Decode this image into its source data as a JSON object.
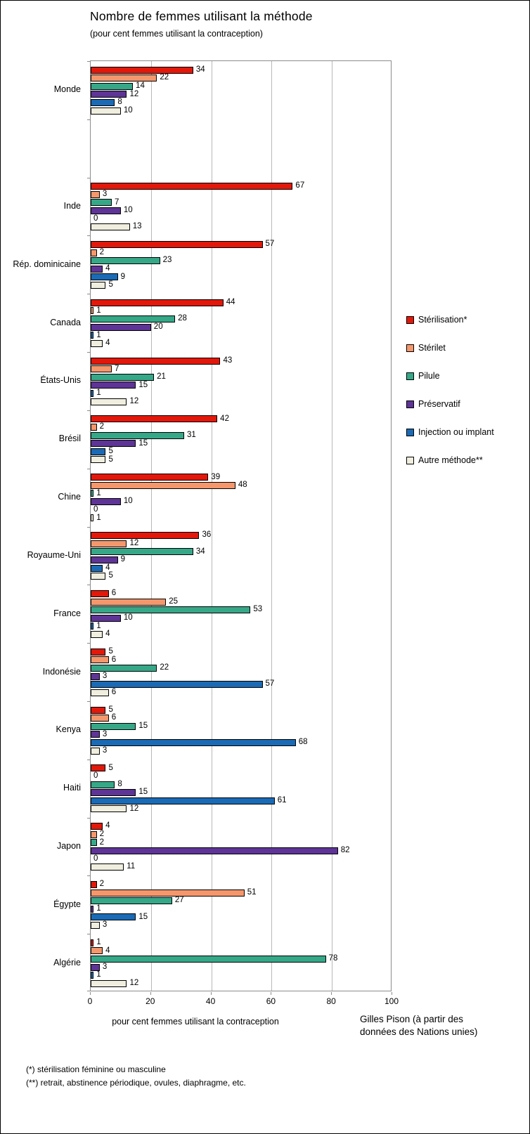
{
  "title": "Nombre de femmes utilisant la méthode",
  "subtitle": "(pour cent femmes utilisant la contraception)",
  "xlabel": "pour cent femmes utilisant la contraception",
  "credit": "Gilles Pison (à partir des données des Nations unies)",
  "footnotes": [
    "(*) stérilisation féminine ou masculine",
    "(**) retrait, abstinence périodique, ovules, diaphragme, etc."
  ],
  "chart_data": {
    "type": "bar",
    "orientation": "horizontal",
    "title": "Nombre de femmes utilisant la méthode",
    "subtitle": "(pour cent femmes utilisant la contraception)",
    "xlabel": "pour cent femmes utilisant la contraception",
    "xlim": [
      0,
      100
    ],
    "x_ticks": [
      0,
      20,
      40,
      60,
      80,
      100
    ],
    "grid": true,
    "legend_position": "right",
    "gap_after_first_category": true,
    "categories": [
      "Monde",
      "Inde",
      "Rép. dominicaine",
      "Canada",
      "États-Unis",
      "Brésil",
      "Chine",
      "Royaume-Uni",
      "France",
      "Indonésie",
      "Kenya",
      "Haiti",
      "Japon",
      "Égypte",
      "Algérie"
    ],
    "series": [
      {
        "name": "Stérilisation*",
        "color": "#e2180b",
        "values": [
          34,
          67,
          57,
          44,
          43,
          42,
          39,
          36,
          6,
          5,
          5,
          5,
          4,
          2,
          1
        ]
      },
      {
        "name": "Stérilet",
        "color": "#f5976c",
        "values": [
          22,
          3,
          2,
          1,
          7,
          2,
          48,
          12,
          25,
          6,
          6,
          0,
          2,
          51,
          4
        ]
      },
      {
        "name": "Pilule",
        "color": "#36a888",
        "values": [
          14,
          7,
          23,
          28,
          21,
          31,
          1,
          34,
          53,
          22,
          15,
          8,
          2,
          27,
          78
        ]
      },
      {
        "name": "Préservatif",
        "color": "#5e3496",
        "values": [
          12,
          10,
          4,
          20,
          15,
          15,
          10,
          9,
          10,
          3,
          3,
          15,
          82,
          1,
          3
        ]
      },
      {
        "name": "Injection ou implant",
        "color": "#1b6ab5",
        "values": [
          8,
          0,
          9,
          1,
          1,
          5,
          0,
          4,
          1,
          57,
          68,
          61,
          0,
          15,
          1
        ]
      },
      {
        "name": "Autre méthode**",
        "color": "#efeedf",
        "values": [
          10,
          13,
          5,
          4,
          12,
          5,
          1,
          5,
          4,
          6,
          3,
          12,
          11,
          3,
          12
        ]
      }
    ]
  }
}
